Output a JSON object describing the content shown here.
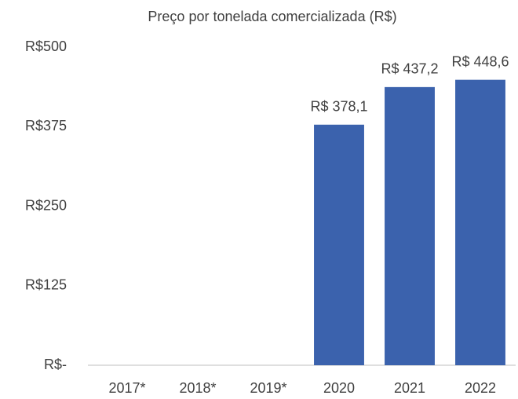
{
  "chart_data": {
    "type": "bar",
    "title": "Preço por tonelada comercializada (R$)",
    "categories": [
      "2017*",
      "2018*",
      "2019*",
      "2020",
      "2021",
      "2022"
    ],
    "values": [
      null,
      null,
      null,
      378.1,
      437.2,
      448.6
    ],
    "value_labels": [
      null,
      null,
      null,
      "R$ 378,1",
      "R$ 437,2",
      "R$ 448,6"
    ],
    "color": "#3b62ad",
    "ylim": [
      0,
      500
    ],
    "yticks": [
      {
        "value": 0,
        "label": "R$-"
      },
      {
        "value": 125,
        "label": "R$125"
      },
      {
        "value": 250,
        "label": "R$250"
      },
      {
        "value": 375,
        "label": "R$375"
      },
      {
        "value": 500,
        "label": "R$500"
      }
    ],
    "grid": false
  }
}
